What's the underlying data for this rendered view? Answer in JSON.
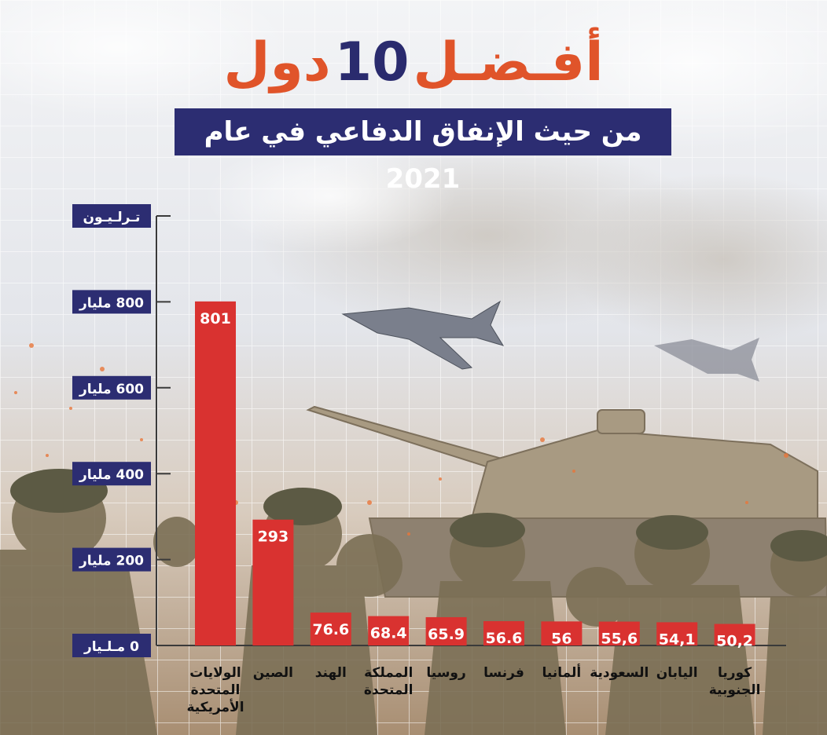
{
  "header": {
    "title_words": "أفـضـل",
    "title_number": "10",
    "title_tail": "دول",
    "subtitle": "من حيث الإنفاق الدفاعي في عام 2021"
  },
  "colors": {
    "bar": "#d93230",
    "navy": "#2c2d72",
    "orange": "#e0542a",
    "axis": "#3a3a3a"
  },
  "chart_data": {
    "type": "bar",
    "title": "أفـضـل 10 دول",
    "subtitle": "من حيث الإنفاق الدفاعي في عام 2021",
    "ylim": [
      0,
      1000
    ],
    "y_ticks": [
      {
        "value": 0,
        "label": "0 مـلـيار"
      },
      {
        "value": 200,
        "label": "200 مليار"
      },
      {
        "value": 400,
        "label": "400 مليار"
      },
      {
        "value": 600,
        "label": "600 مليار"
      },
      {
        "value": 800,
        "label": "800 مليار"
      },
      {
        "value": 1000,
        "label": "تـرلـيـون"
      }
    ],
    "categories": [
      {
        "lines": [
          "الولايات",
          "المتحدة",
          "الأمريكية"
        ]
      },
      {
        "lines": [
          "الصين"
        ]
      },
      {
        "lines": [
          "الهند"
        ]
      },
      {
        "lines": [
          "المملكة",
          "المتحدة"
        ]
      },
      {
        "lines": [
          "روسيا"
        ]
      },
      {
        "lines": [
          "فرنسا"
        ]
      },
      {
        "lines": [
          "ألمانيا"
        ]
      },
      {
        "lines": [
          "السعودية"
        ]
      },
      {
        "lines": [
          "اليابان"
        ]
      },
      {
        "lines": [
          "كوريا",
          "الجنوبية"
        ]
      }
    ],
    "values": [
      801,
      293,
      76.6,
      68.4,
      65.9,
      56.6,
      56,
      55.6,
      54.1,
      50.2
    ],
    "value_labels": [
      "801",
      "293",
      "76.6",
      "68.4",
      "65.9",
      "56.6",
      "56",
      "55,6",
      "54,1",
      "50,2"
    ],
    "grid": true,
    "legend": "none"
  }
}
